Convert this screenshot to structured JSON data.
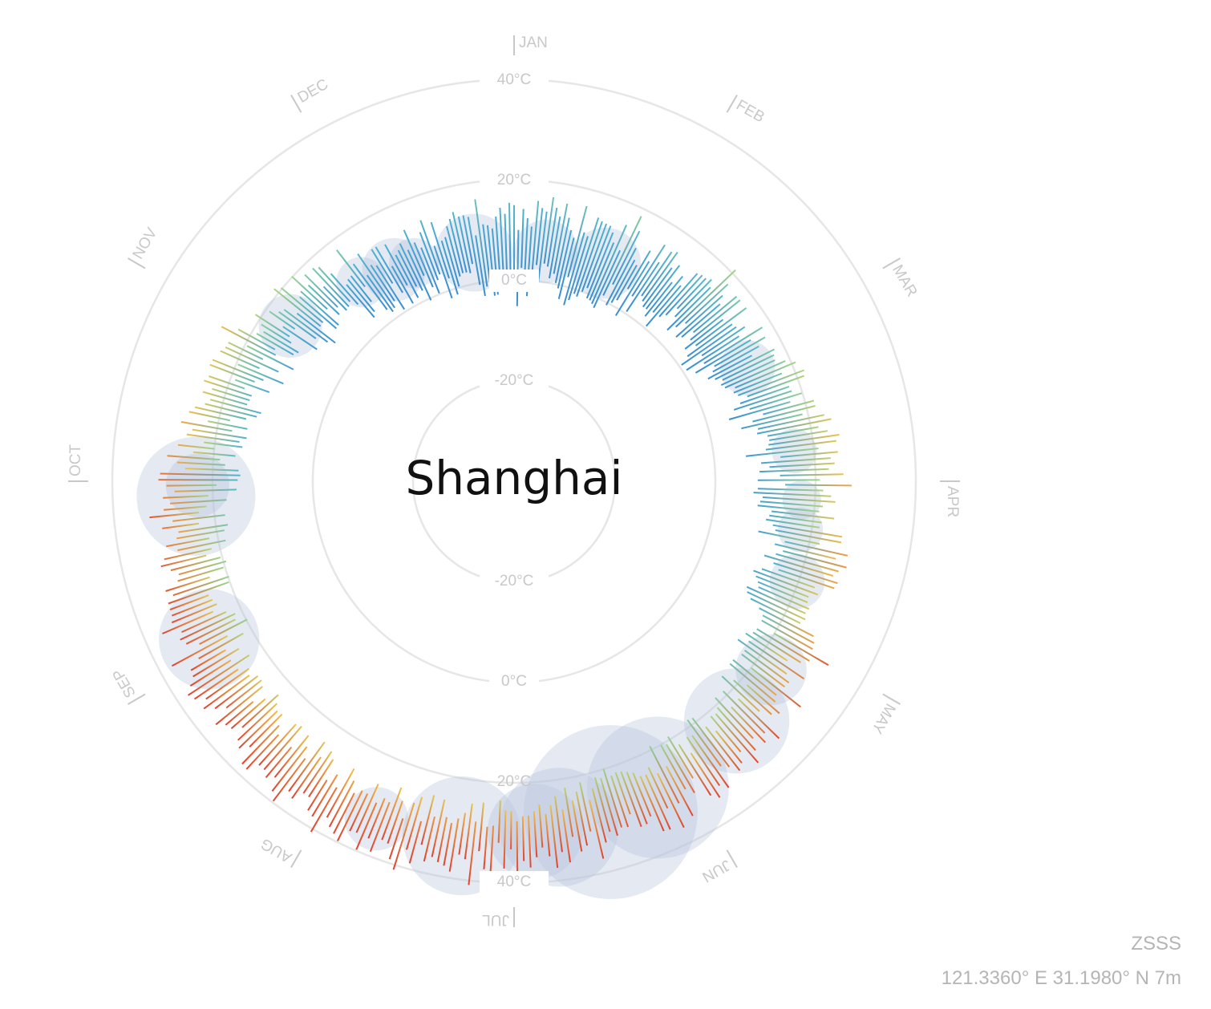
{
  "station": {
    "code": "ZSSS",
    "coordinates": "121.3360° E 31.1980° N 7m"
  },
  "chart_data": {
    "type": "radial-temperature",
    "title": "Shanghai",
    "months": [
      "JAN",
      "FEB",
      "MAR",
      "APR",
      "MAY",
      "JUN",
      "JUL",
      "AUG",
      "SEP",
      "OCT",
      "NOV",
      "DEC"
    ],
    "ring_labels": [
      "40°C",
      "20°C",
      "0°C",
      "-20°C",
      "-20°C",
      "0°C",
      "20°C",
      "40°C"
    ],
    "temperature_range": [
      -20,
      40
    ],
    "colors": {
      "cold": "#3a8fcf",
      "mild": "#9ed98a",
      "warm": "#f2c04a",
      "hot": "#e0432f",
      "rain": "#b7c4dd",
      "grid": "#e6e6e6"
    },
    "anchors_day_low_high": [
      [
        1,
        -1,
        12
      ],
      [
        20,
        0,
        14
      ],
      [
        32,
        2,
        12
      ],
      [
        45,
        3,
        14
      ],
      [
        60,
        4,
        16
      ],
      [
        75,
        8,
        20
      ],
      [
        91,
        10,
        24
      ],
      [
        105,
        12,
        24
      ],
      [
        121,
        16,
        28
      ],
      [
        135,
        19,
        30
      ],
      [
        152,
        21,
        32
      ],
      [
        166,
        23,
        34
      ],
      [
        182,
        25,
        35
      ],
      [
        197,
        27,
        37
      ],
      [
        213,
        28,
        38
      ],
      [
        228,
        27,
        37
      ],
      [
        244,
        24,
        34
      ],
      [
        258,
        21,
        31
      ],
      [
        274,
        18,
        28
      ],
      [
        288,
        15,
        24
      ],
      [
        305,
        11,
        20
      ],
      [
        320,
        7,
        16
      ],
      [
        335,
        4,
        13
      ],
      [
        350,
        1,
        12
      ],
      [
        366,
        -1,
        12
      ]
    ],
    "precipitation_bubbles": [
      {
        "day": 9,
        "mm": 8
      },
      {
        "day": 24,
        "mm": 10
      },
      {
        "day": 66,
        "mm": 6
      },
      {
        "day": 86,
        "mm": 4
      },
      {
        "day": 96,
        "mm": 3
      },
      {
        "day": 102,
        "mm": 4
      },
      {
        "day": 112,
        "mm": 6
      },
      {
        "day": 129,
        "mm": 10
      },
      {
        "day": 140,
        "mm": 22
      },
      {
        "day": 158,
        "mm": 40
      },
      {
        "day": 167,
        "mm": 60
      },
      {
        "day": 176,
        "mm": 28
      },
      {
        "day": 180,
        "mm": 18
      },
      {
        "day": 192,
        "mm": 28
      },
      {
        "day": 206,
        "mm": 8
      },
      {
        "day": 247,
        "mm": 20
      },
      {
        "day": 272,
        "mm": 28
      },
      {
        "day": 274,
        "mm": 8
      },
      {
        "day": 310,
        "mm": 8
      },
      {
        "day": 328,
        "mm": 5
      },
      {
        "day": 336,
        "mm": 8
      },
      {
        "day": 341,
        "mm": 5
      },
      {
        "day": 356,
        "mm": 12
      }
    ]
  }
}
